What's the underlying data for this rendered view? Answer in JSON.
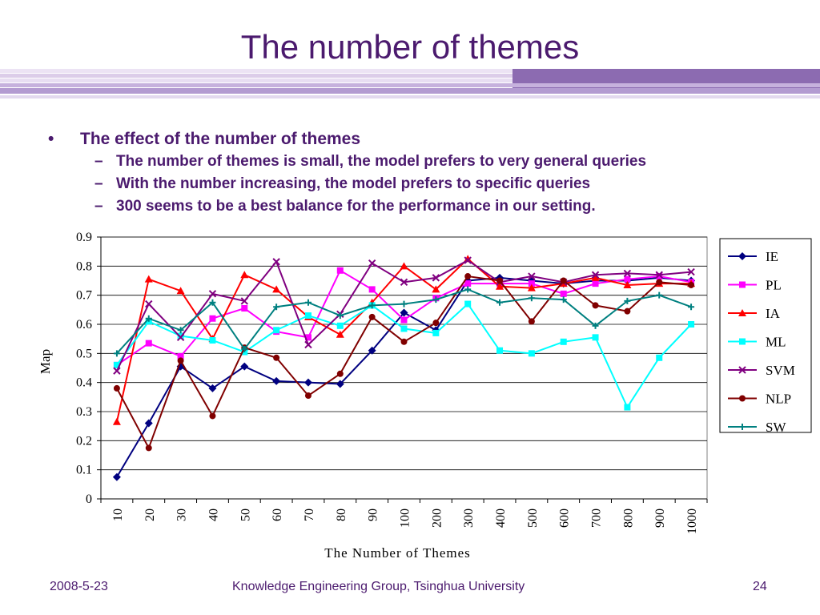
{
  "title": "The number of themes",
  "bullets": {
    "main": "The effect of the number of themes",
    "subs": [
      "The number of themes is small, the model prefers to very general queries",
      "With the number increasing, the model prefers to specific queries",
      "300 seems to be a best balance for the performance in our setting."
    ]
  },
  "footer": {
    "date": "2008-5-23",
    "org": "Knowledge Engineering Group, Tsinghua University",
    "page": "24"
  },
  "colors": {
    "title": "#4b1a6e",
    "stripe": "#8c6bb1"
  },
  "chart_data": {
    "type": "line",
    "xlabel": "The Number of Themes",
    "ylabel": "Map",
    "ylim": [
      0,
      0.9
    ],
    "yticks": [
      "0",
      "0.1",
      "0.2",
      "0.3",
      "0.4",
      "0.5",
      "0.6",
      "0.7",
      "0.8",
      "0.9"
    ],
    "categories": [
      "10",
      "20",
      "30",
      "40",
      "50",
      "60",
      "70",
      "80",
      "90",
      "100",
      "200",
      "300",
      "400",
      "500",
      "600",
      "700",
      "800",
      "900",
      "1000"
    ],
    "legend_position": "right",
    "series": [
      {
        "name": "IE",
        "color": "#000080",
        "marker": "diamond",
        "values": [
          0.075,
          0.26,
          0.455,
          0.38,
          0.455,
          0.405,
          0.4,
          0.395,
          0.51,
          0.64,
          0.58,
          0.75,
          0.76,
          0.75,
          0.74,
          0.75,
          0.75,
          0.76,
          0.75
        ]
      },
      {
        "name": "PL",
        "color": "#ff00ff",
        "marker": "square",
        "values": [
          0.46,
          0.535,
          0.49,
          0.62,
          0.655,
          0.575,
          0.555,
          0.785,
          0.72,
          0.615,
          0.69,
          0.74,
          0.74,
          0.74,
          0.705,
          0.74,
          0.755,
          0.765,
          0.745
        ]
      },
      {
        "name": "IA",
        "color": "#ff0000",
        "marker": "triangle",
        "values": [
          0.265,
          0.755,
          0.715,
          0.55,
          0.77,
          0.72,
          0.625,
          0.565,
          0.675,
          0.8,
          0.72,
          0.825,
          0.73,
          0.725,
          0.74,
          0.76,
          0.735,
          0.74,
          0.74
        ]
      },
      {
        "name": "ML",
        "color": "#00ffff",
        "marker": "square",
        "values": [
          0.46,
          0.61,
          0.56,
          0.545,
          0.505,
          0.58,
          0.63,
          0.595,
          0.665,
          0.585,
          0.57,
          0.67,
          0.51,
          0.5,
          0.54,
          0.555,
          0.315,
          0.485,
          0.6
        ]
      },
      {
        "name": "SVM",
        "color": "#800080",
        "marker": "x",
        "values": [
          0.44,
          0.67,
          0.555,
          0.705,
          0.68,
          0.815,
          0.53,
          0.635,
          0.81,
          0.745,
          0.76,
          0.82,
          0.745,
          0.765,
          0.745,
          0.77,
          0.775,
          0.77,
          0.78
        ]
      },
      {
        "name": "NLP",
        "color": "#800000",
        "marker": "circle",
        "values": [
          0.38,
          0.175,
          0.475,
          0.285,
          0.52,
          0.485,
          0.355,
          0.43,
          0.625,
          0.54,
          0.605,
          0.765,
          0.75,
          0.61,
          0.75,
          0.665,
          0.645,
          0.745,
          0.735
        ]
      },
      {
        "name": "SW",
        "color": "#008080",
        "marker": "plus",
        "values": [
          0.5,
          0.62,
          0.58,
          0.675,
          0.515,
          0.66,
          0.675,
          0.63,
          0.665,
          0.67,
          0.685,
          0.72,
          0.675,
          0.69,
          0.685,
          0.595,
          0.68,
          0.7,
          0.66
        ]
      }
    ]
  }
}
